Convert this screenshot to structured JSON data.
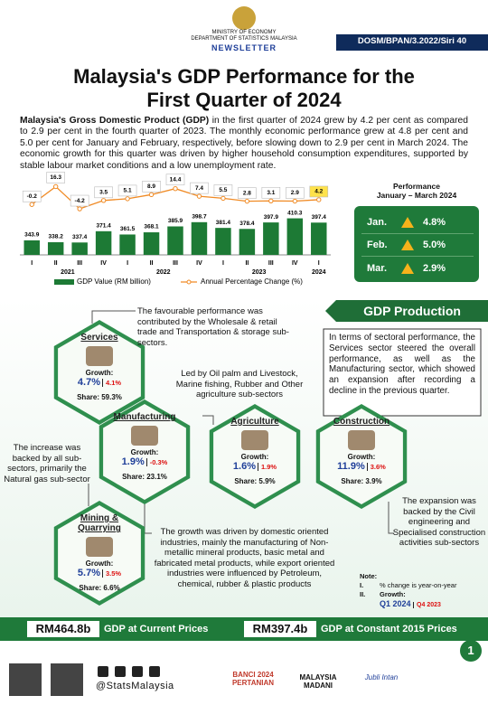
{
  "header": {
    "ministry": "MINISTRY OF ECONOMY",
    "department": "DEPARTMENT OF STATISTICS MALAYSIA",
    "newsletter": "NEWSLETTER",
    "series": "DOSM/BPAN/3.2022/Siri 40"
  },
  "title": [
    "Malaysia's GDP Performance for the",
    "First Quarter of 2024"
  ],
  "intro": {
    "lead": "Malaysia's Gross Domestic Product (GDP)",
    "body": "in the first quarter of 2024 grew by 4.2 per cent as compared to 2.9 per cent in the fourth quarter of 2023. The monthly economic performance grew at 4.8 per cent and 5.0 per cent for January and February, respectively, before slowing down to 2.9 per cent in March 2024. The economic growth for this quarter was driven by higher household consumption expenditures, supported by stable labour market conditions and a low unemployment rate."
  },
  "chart_data": {
    "type": "bar-line",
    "categories": [
      "I",
      "II",
      "III",
      "IV",
      "I",
      "II",
      "III",
      "IV",
      "I",
      "II",
      "III",
      "IV",
      "I"
    ],
    "years": [
      "2021",
      "2022",
      "2023",
      "2024"
    ],
    "series": [
      {
        "name": "GDP Value (RM billion)",
        "color": "#1d7a35",
        "values": [
          343.9,
          338.2,
          337.4,
          371.4,
          361.5,
          368.1,
          385.9,
          398.7,
          381.4,
          378.4,
          397.9,
          410.3,
          397.4
        ]
      },
      {
        "name": "Annual Percentage Change (%)",
        "color": "#f08a24",
        "axis": "y2",
        "values": [
          -0.2,
          16.3,
          -4.2,
          3.5,
          5.1,
          8.9,
          14.4,
          7.4,
          5.5,
          2.8,
          3.1,
          2.9,
          4.2
        ]
      }
    ],
    "ylim": [
      300,
      420
    ],
    "y2lim": [
      -10,
      20
    ]
  },
  "performance": {
    "title": "Performance",
    "period": "January – March 2024",
    "months": [
      {
        "month": "Jan.",
        "value": "4.8%"
      },
      {
        "month": "Feb.",
        "value": "5.0%"
      },
      {
        "month": "Mar.",
        "value": "2.9%"
      }
    ]
  },
  "production": {
    "heading": "GDP Production",
    "summary": "In terms of sectoral performance, the Services sector steered the overall performance, as well as the Manufacturing sector, which showed an expansion after recording a decline in the previous quarter.",
    "sectors": [
      {
        "name": "Services",
        "growth_label": "Growth:",
        "growth": "4.7%",
        "previous": "4.1%",
        "share": "Share: 59.3%"
      },
      {
        "name": "Manufacturing",
        "growth_label": "Growth:",
        "growth": "1.9%",
        "previous": "-0.3%",
        "share": "Share: 23.1%"
      },
      {
        "name": "Agriculture",
        "growth_label": "Growth:",
        "growth": "1.6%",
        "previous": "1.9%",
        "share": "Share: 5.9%"
      },
      {
        "name": "Construction",
        "growth_label": "Growth:",
        "growth": "11.9%",
        "previous": "3.6%",
        "share": "Share: 3.9%"
      },
      {
        "name": "Mining & Quarrying",
        "growth_label": "Growth:",
        "growth": "5.7%",
        "previous": "3.5%",
        "share": "Share: 6.6%"
      }
    ],
    "annotations": [
      "The favourable performance was contributed by the Wholesale & retail trade and Transportation & storage sub-sectors.",
      "Led by Oil palm and Livestock, Marine fishing, Rubber and Other agriculture sub-sectors",
      "The increase was backed by all sub-sectors, primarily the Natural gas sub-sector",
      "The growth was driven by domestic oriented industries, mainly the manufacturing of Non-metallic mineral products, basic metal and fabricated metal products, while export oriented industries were influenced by Petroleum, chemical, rubber & plastic products",
      "The expansion was backed by the Civil engineering and Specialised construction activities sub-sectors"
    ]
  },
  "note": {
    "title": "Note:",
    "items": [
      {
        "num": "I.",
        "text": "% change is year-on-year"
      },
      {
        "num": "II.",
        "text": "Growth:"
      }
    ],
    "current": "Q1 2024",
    "previous": "Q4 2023"
  },
  "totals": [
    {
      "value": "RM464.8b",
      "label": "GDP at Current Prices"
    },
    {
      "value": "RM397.4b",
      "label": "GDP at Constant 2015 Prices"
    }
  ],
  "page": "1",
  "footer": {
    "handle": "@StatsMalaysia",
    "logos": [
      "BANCI 2024 PERTANIAN",
      "MALAYSIA MADANI",
      "Jubli Intan"
    ]
  }
}
